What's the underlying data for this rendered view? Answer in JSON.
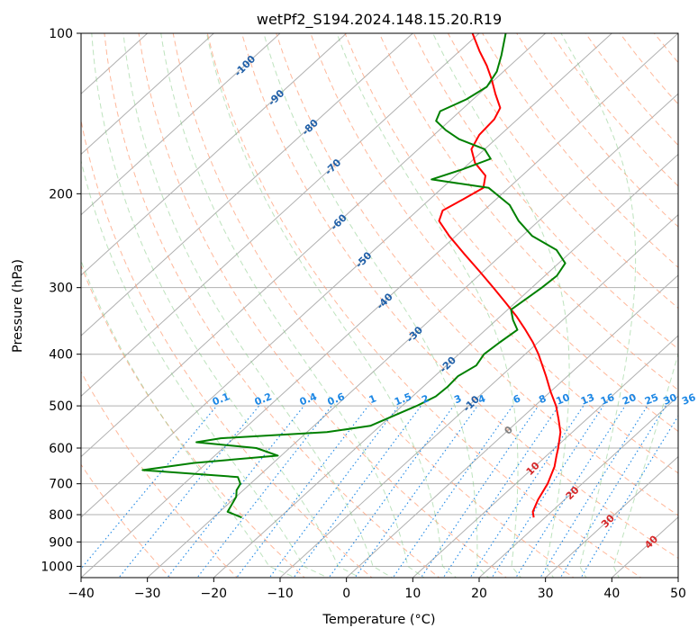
{
  "chart_data": {
    "type": "line",
    "subtype": "skew-t log-p diagram",
    "title": "wetPf2_S194.2024.148.15.20.R19",
    "xlabel": "Temperature (°C)",
    "ylabel": "Pressure (hPa)",
    "xlim": [
      -40,
      50
    ],
    "ylim": [
      1050,
      100
    ],
    "y_scale": "log",
    "x_ticks": [
      "−40",
      "−30",
      "−20",
      "−10",
      "0",
      "10",
      "20",
      "30",
      "40",
      "50"
    ],
    "x_tick_values": [
      -40,
      -30,
      -20,
      -10,
      0,
      10,
      20,
      30,
      40,
      50
    ],
    "y_ticks": [
      "100",
      "200",
      "300",
      "400",
      "500",
      "600",
      "700",
      "800",
      "900",
      "1000"
    ],
    "y_tick_values": [
      100,
      200,
      300,
      400,
      500,
      600,
      700,
      800,
      900,
      1000
    ],
    "grid": true,
    "series": [
      {
        "role": "temperature",
        "color": "#ff0000",
        "points": [
          {
            "p": 810,
            "t": 18.3
          },
          {
            "p": 790,
            "t": 17.2
          },
          {
            "p": 750,
            "t": 16.0
          },
          {
            "p": 700,
            "t": 14.8
          },
          {
            "p": 650,
            "t": 13.0
          },
          {
            "p": 620,
            "t": 11.5
          },
          {
            "p": 600,
            "t": 10.5
          },
          {
            "p": 560,
            "t": 8.2
          },
          {
            "p": 530,
            "t": 5.8
          },
          {
            "p": 500,
            "t": 3.2
          },
          {
            "p": 470,
            "t": 0.0
          },
          {
            "p": 440,
            "t": -3.2
          },
          {
            "p": 400,
            "t": -8.0
          },
          {
            "p": 380,
            "t": -10.8
          },
          {
            "p": 360,
            "t": -14.0
          },
          {
            "p": 340,
            "t": -17.5
          },
          {
            "p": 320,
            "t": -21.5
          },
          {
            "p": 300,
            "t": -25.8
          },
          {
            "p": 280,
            "t": -30.5
          },
          {
            "p": 260,
            "t": -35.6
          },
          {
            "p": 240,
            "t": -41.0
          },
          {
            "p": 225,
            "t": -45.0
          },
          {
            "p": 215,
            "t": -46.2
          },
          {
            "p": 205,
            "t": -45.0
          },
          {
            "p": 195,
            "t": -43.8
          },
          {
            "p": 185,
            "t": -45.5
          },
          {
            "p": 175,
            "t": -49.2
          },
          {
            "p": 165,
            "t": -52.0
          },
          {
            "p": 155,
            "t": -53.2
          },
          {
            "p": 145,
            "t": -53.5
          },
          {
            "p": 138,
            "t": -54.5
          },
          {
            "p": 130,
            "t": -57.5
          },
          {
            "p": 122,
            "t": -60.5
          },
          {
            "p": 115,
            "t": -63.5
          },
          {
            "p": 108,
            "t": -67.0
          },
          {
            "p": 100,
            "t": -71.0
          }
        ]
      },
      {
        "role": "dewpoint",
        "color": "#008000",
        "points": [
          {
            "p": 810,
            "t": -25.7
          },
          {
            "p": 790,
            "t": -28.8
          },
          {
            "p": 760,
            "t": -29.5
          },
          {
            "p": 740,
            "t": -30.0
          },
          {
            "p": 720,
            "t": -31.0
          },
          {
            "p": 700,
            "t": -31.5
          },
          {
            "p": 680,
            "t": -33.0
          },
          {
            "p": 660,
            "t": -48.5
          },
          {
            "p": 640,
            "t": -42.0
          },
          {
            "p": 620,
            "t": -30.5
          },
          {
            "p": 600,
            "t": -35.0
          },
          {
            "p": 585,
            "t": -45.0
          },
          {
            "p": 575,
            "t": -42.0
          },
          {
            "p": 560,
            "t": -27.0
          },
          {
            "p": 545,
            "t": -21.5
          },
          {
            "p": 520,
            "t": -19.5
          },
          {
            "p": 500,
            "t": -17.8
          },
          {
            "p": 480,
            "t": -16.5
          },
          {
            "p": 460,
            "t": -16.3
          },
          {
            "p": 440,
            "t": -16.5
          },
          {
            "p": 420,
            "t": -15.5
          },
          {
            "p": 400,
            "t": -16.2
          },
          {
            "p": 380,
            "t": -15.8
          },
          {
            "p": 360,
            "t": -15.2
          },
          {
            "p": 345,
            "t": -17.5
          },
          {
            "p": 330,
            "t": -19.5
          },
          {
            "p": 315,
            "t": -19.0
          },
          {
            "p": 300,
            "t": -18.5
          },
          {
            "p": 285,
            "t": -18.2
          },
          {
            "p": 270,
            "t": -19.0
          },
          {
            "p": 255,
            "t": -22.5
          },
          {
            "p": 240,
            "t": -28.5
          },
          {
            "p": 225,
            "t": -33.0
          },
          {
            "p": 210,
            "t": -37.0
          },
          {
            "p": 195,
            "t": -43.0
          },
          {
            "p": 188,
            "t": -53.0
          },
          {
            "p": 180,
            "t": -50.0
          },
          {
            "p": 172,
            "t": -47.5
          },
          {
            "p": 165,
            "t": -50.0
          },
          {
            "p": 158,
            "t": -55.5
          },
          {
            "p": 152,
            "t": -59.0
          },
          {
            "p": 146,
            "t": -62.0
          },
          {
            "p": 140,
            "t": -63.0
          },
          {
            "p": 133,
            "t": -61.0
          },
          {
            "p": 126,
            "t": -60.0
          },
          {
            "p": 118,
            "t": -61.0
          },
          {
            "p": 110,
            "t": -63.0
          },
          {
            "p": 100,
            "t": -66.0
          }
        ]
      }
    ],
    "isotherm_labels": [
      "-100",
      "-90",
      "-80",
      "-70",
      "-60",
      "-50",
      "-40",
      "-30",
      "-20",
      "-10",
      "0",
      "10",
      "20",
      "30",
      "40"
    ],
    "isotherm_label_values": [
      -100,
      -90,
      -80,
      -70,
      -60,
      -50,
      -40,
      -30,
      -20,
      -10,
      0,
      10,
      20,
      30,
      40
    ],
    "mixing_ratio_labels": [
      "0.1",
      "0.2",
      "0.4",
      "0.6",
      "1",
      "1.5",
      "2",
      "3",
      "4",
      "6",
      "8",
      "10",
      "13",
      "16",
      "20",
      "25",
      "30",
      "36"
    ],
    "mixing_ratio_values": [
      0.1,
      0.2,
      0.4,
      0.6,
      1,
      1.5,
      2,
      3,
      4,
      6,
      8,
      10,
      13,
      16,
      20,
      25,
      30,
      36
    ],
    "colors": {
      "temperature": "#ff0000",
      "dewpoint": "#008000",
      "isotherm_neg_label": "#1f5fa8",
      "isotherm_pos_label": "#d62728",
      "isotherm_zero_label": "#808080",
      "mixing_ratio": "#1e88e5",
      "dry_adiabat": "#ff7f50",
      "moist_adiabat": "#2ca02c"
    }
  }
}
